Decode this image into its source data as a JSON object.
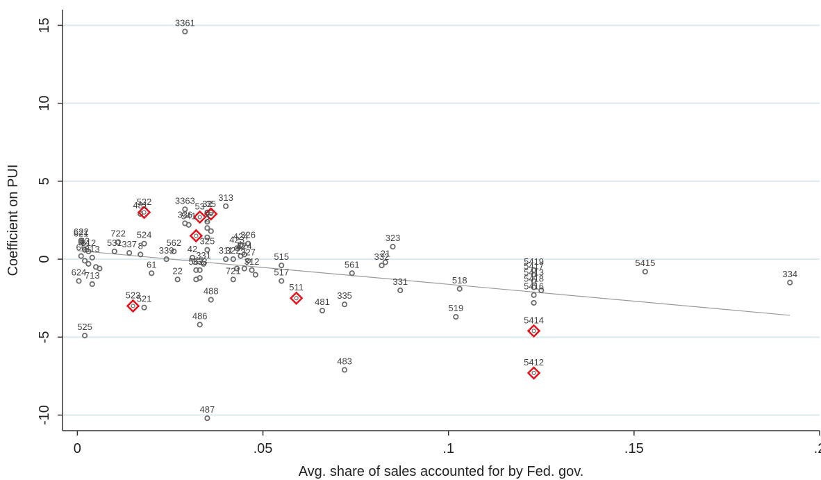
{
  "chart_data": {
    "type": "scatter",
    "title": "",
    "xlabel": "Avg. share of sales accounted for by Fed. gov.",
    "ylabel": "Coefficient on PUI",
    "xlim": [
      -0.004,
      0.2
    ],
    "ylim": [
      -11,
      16
    ],
    "x_ticks": [
      0,
      0.05,
      0.1,
      0.15,
      0.2
    ],
    "x_tick_labels": [
      "0",
      ".05",
      ".1",
      ".15",
      ".2"
    ],
    "y_ticks": [
      -10,
      -5,
      0,
      5,
      10,
      15
    ],
    "y_tick_labels": [
      "-10",
      "-5",
      "0",
      "5",
      "10",
      "15"
    ],
    "grid": "horizontal",
    "colors": {
      "grid": "#dbe9ef",
      "marker": "#6b6b6b",
      "highlight": "#e8111a",
      "fit": "#9a9a9a",
      "label": "#444444"
    },
    "fit_line": {
      "x": [
        0,
        0.192
      ],
      "y": [
        0.55,
        -3.6
      ]
    },
    "points": [
      {
        "x": 0.029,
        "y": 14.6,
        "label": "3361"
      },
      {
        "x": 0.029,
        "y": 3.2,
        "label": "3363"
      },
      {
        "x": 0.04,
        "y": 3.4,
        "label": "313"
      },
      {
        "x": 0.017,
        "y": 2.9,
        "label": "481"
      },
      {
        "x": 0.035,
        "y": 3.0,
        "label": "32"
      },
      {
        "x": 0.036,
        "y": 3.0,
        "label": "35"
      },
      {
        "x": 0.029,
        "y": 2.3,
        "label": "336"
      },
      {
        "x": 0.03,
        "y": 2.2,
        "label": "541"
      },
      {
        "x": 0.035,
        "y": 2.4,
        "label": "6"
      },
      {
        "x": 0.035,
        "y": 2.0,
        "label": "2"
      },
      {
        "x": 0.036,
        "y": 1.8,
        "label": ""
      },
      {
        "x": 0.035,
        "y": 1.4,
        "label": ""
      },
      {
        "x": 0.001,
        "y": 1.2,
        "label": "622"
      },
      {
        "x": 0.001,
        "y": 1.1,
        "label": "621"
      },
      {
        "x": 0.011,
        "y": 1.1,
        "label": "722"
      },
      {
        "x": 0.018,
        "y": 1.0,
        "label": "524"
      },
      {
        "x": 0.046,
        "y": 1.0,
        "label": "326"
      },
      {
        "x": 0.044,
        "y": 0.9,
        "label": "424"
      },
      {
        "x": 0.043,
        "y": 0.7,
        "label": "423"
      },
      {
        "x": 0.002,
        "y": 0.6,
        "label": "62"
      },
      {
        "x": 0.003,
        "y": 0.5,
        "label": "812"
      },
      {
        "x": 0.01,
        "y": 0.5,
        "label": "531"
      },
      {
        "x": 0.014,
        "y": 0.4,
        "label": "337"
      },
      {
        "x": 0.017,
        "y": 0.3,
        "label": "8"
      },
      {
        "x": 0.085,
        "y": 0.8,
        "label": "323"
      },
      {
        "x": 0.026,
        "y": 0.5,
        "label": "562"
      },
      {
        "x": 0.001,
        "y": 0.2,
        "label": "66"
      },
      {
        "x": 0.004,
        "y": 0.1,
        "label": "813"
      },
      {
        "x": 0.002,
        "y": -0.1,
        "label": ""
      },
      {
        "x": 0.003,
        "y": -0.3,
        "label": ""
      },
      {
        "x": 0.024,
        "y": 0.0,
        "label": "339"
      },
      {
        "x": 0.031,
        "y": 0.1,
        "label": "42"
      },
      {
        "x": 0.035,
        "y": 0.6,
        "label": "325"
      },
      {
        "x": 0.04,
        "y": 0.0,
        "label": "311"
      },
      {
        "x": 0.042,
        "y": 0.0,
        "label": "322"
      },
      {
        "x": 0.044,
        "y": 0.2,
        "label": "44"
      },
      {
        "x": 0.045,
        "y": 0.3,
        "label": "324"
      },
      {
        "x": 0.046,
        "y": -0.1,
        "label": "327"
      },
      {
        "x": 0.047,
        "y": -0.7,
        "label": "312"
      },
      {
        "x": 0.055,
        "y": -0.4,
        "label": "515"
      },
      {
        "x": 0.083,
        "y": -0.2,
        "label": "21"
      },
      {
        "x": 0.082,
        "y": -0.4,
        "label": "332"
      },
      {
        "x": 0.074,
        "y": -0.9,
        "label": "561"
      },
      {
        "x": 0.006,
        "y": -0.6,
        "label": ""
      },
      {
        "x": 0.005,
        "y": -0.5,
        "label": ""
      },
      {
        "x": 0.0004,
        "y": -1.4,
        "label": "624"
      },
      {
        "x": 0.004,
        "y": -1.6,
        "label": "713"
      },
      {
        "x": 0.02,
        "y": -0.9,
        "label": "61"
      },
      {
        "x": 0.027,
        "y": -1.3,
        "label": "22"
      },
      {
        "x": 0.032,
        "y": -0.7,
        "label": "562"
      },
      {
        "x": 0.033,
        "y": -0.7,
        "label": "333"
      },
      {
        "x": 0.034,
        "y": -0.3,
        "label": "331"
      },
      {
        "x": 0.042,
        "y": -1.3,
        "label": "721"
      },
      {
        "x": 0.043,
        "y": -0.6,
        "label": ""
      },
      {
        "x": 0.045,
        "y": -0.6,
        "label": ""
      },
      {
        "x": 0.048,
        "y": -1.0,
        "label": ""
      },
      {
        "x": 0.055,
        "y": -1.4,
        "label": "517"
      },
      {
        "x": 0.032,
        "y": -1.3,
        "label": ""
      },
      {
        "x": 0.033,
        "y": -1.2,
        "label": ""
      },
      {
        "x": 0.087,
        "y": -2.0,
        "label": "331"
      },
      {
        "x": 0.103,
        "y": -1.9,
        "label": "518"
      },
      {
        "x": 0.018,
        "y": -3.1,
        "label": "521"
      },
      {
        "x": 0.036,
        "y": -2.6,
        "label": "488"
      },
      {
        "x": 0.066,
        "y": -3.3,
        "label": "481"
      },
      {
        "x": 0.072,
        "y": -2.9,
        "label": "335"
      },
      {
        "x": 0.102,
        "y": -3.7,
        "label": "519"
      },
      {
        "x": 0.033,
        "y": -4.2,
        "label": "486"
      },
      {
        "x": 0.002,
        "y": -4.9,
        "label": "525"
      },
      {
        "x": 0.072,
        "y": -7.1,
        "label": "483"
      },
      {
        "x": 0.035,
        "y": -10.2,
        "label": "487"
      },
      {
        "x": 0.123,
        "y": -0.7,
        "label": "5419"
      },
      {
        "x": 0.123,
        "y": -1.0,
        "label": "5417"
      },
      {
        "x": 0.123,
        "y": -1.4,
        "label": "5413"
      },
      {
        "x": 0.123,
        "y": -1.8,
        "label": "5418"
      },
      {
        "x": 0.123,
        "y": -2.3,
        "label": "5416"
      },
      {
        "x": 0.123,
        "y": -2.8,
        "label": ""
      },
      {
        "x": 0.125,
        "y": -2.0,
        "label": ""
      },
      {
        "x": 0.153,
        "y": -0.8,
        "label": "5415"
      },
      {
        "x": 0.192,
        "y": -1.5,
        "label": "334"
      }
    ],
    "highlighted_points": [
      {
        "x": 0.018,
        "y": 3.0,
        "label": "522"
      },
      {
        "x": 0.033,
        "y": 2.7,
        "label": "53"
      },
      {
        "x": 0.036,
        "y": 2.9,
        "label": ""
      },
      {
        "x": 0.032,
        "y": 1.5,
        "label": ""
      },
      {
        "x": 0.015,
        "y": -3.0,
        "label": "523"
      },
      {
        "x": 0.059,
        "y": -2.5,
        "label": "511"
      },
      {
        "x": 0.123,
        "y": -4.6,
        "label": "5414"
      },
      {
        "x": 0.123,
        "y": -7.3,
        "label": "5412"
      }
    ]
  }
}
